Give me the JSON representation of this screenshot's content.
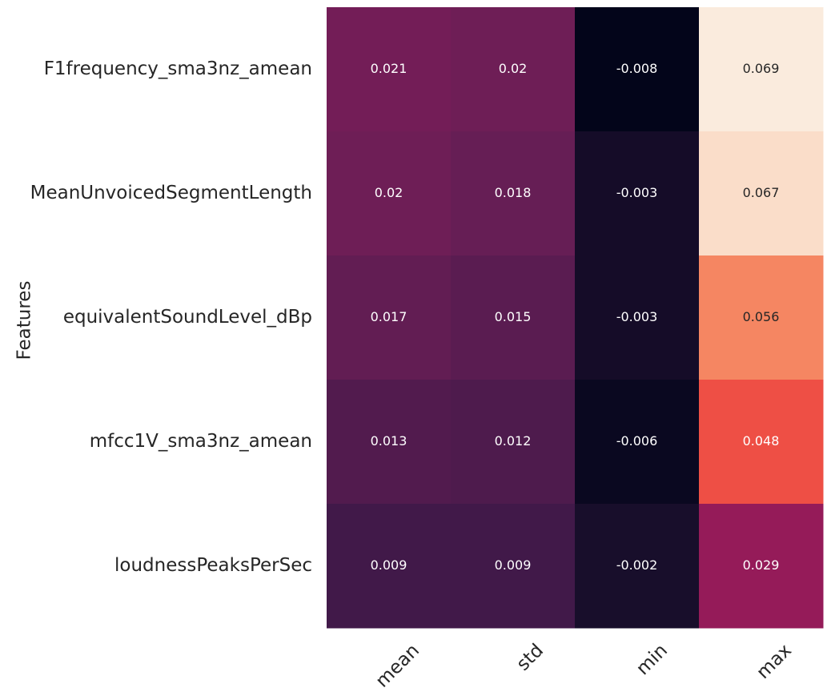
{
  "chart_data": {
    "type": "heatmap",
    "ylabel": "Features",
    "xlabel": "",
    "columns": [
      "mean",
      "std",
      "min",
      "max"
    ],
    "rows": [
      "F1frequency_sma3nz_amean",
      "MeanUnvoicedSegmentLength",
      "equivalentSoundLevel_dBp",
      "mfcc1V_sma3nz_amean",
      "loudnessPeaksPerSec"
    ],
    "values": [
      [
        0.021,
        0.02,
        -0.008,
        0.069
      ],
      [
        0.02,
        0.018,
        -0.003,
        0.067
      ],
      [
        0.017,
        0.015,
        -0.003,
        0.056
      ],
      [
        0.013,
        0.012,
        -0.006,
        0.048
      ],
      [
        0.009,
        0.009,
        -0.002,
        0.029
      ]
    ],
    "value_labels": [
      [
        "0.021",
        "0.02",
        "-0.008",
        "0.069"
      ],
      [
        "0.02",
        "0.018",
        "-0.003",
        "0.067"
      ],
      [
        "0.017",
        "0.015",
        "-0.003",
        "0.056"
      ],
      [
        "0.013",
        "0.012",
        "-0.006",
        "0.048"
      ],
      [
        "0.009",
        "0.009",
        "-0.002",
        "0.029"
      ]
    ],
    "colormap": "rocket",
    "vrange": [
      -0.008,
      0.069
    ],
    "colorbar": false
  }
}
